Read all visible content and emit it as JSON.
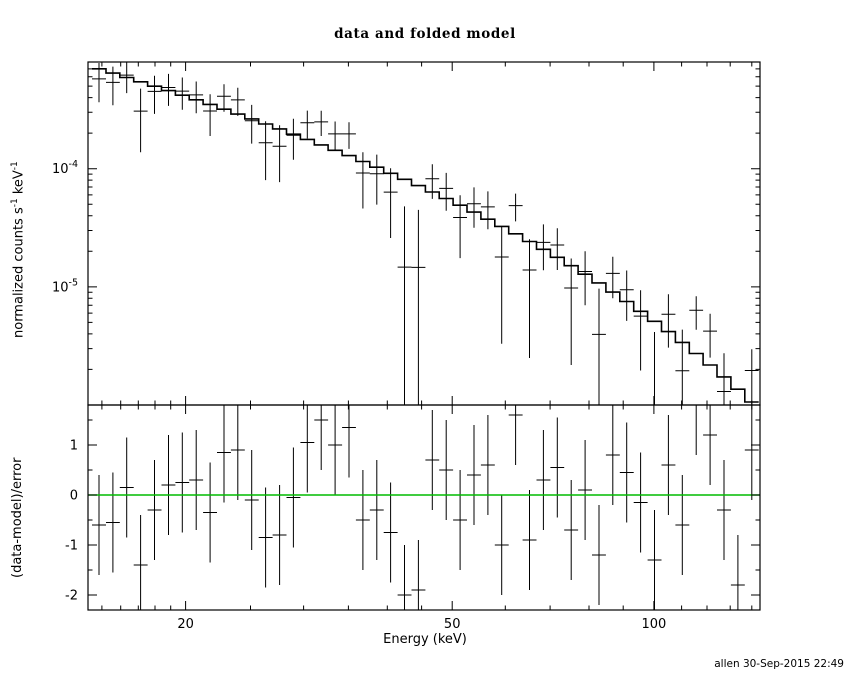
{
  "footer": {
    "text": "allen 30-Sep-2015 22:49"
  },
  "chart_data": {
    "type": "line",
    "title": "data and folded model",
    "xlabel": "Energy (keV)",
    "ylabel_top": {
      "p1": "normalized counts s",
      "s1": "-1",
      "p2": " keV",
      "s2": "-1"
    },
    "ylabel_bottom": "(data-model)/error",
    "x_scale": "log",
    "y_scale_top": "log",
    "y_scale_bottom": "linear",
    "xlim": [
      14.3,
      144
    ],
    "ylim_top": [
      1e-06,
      0.0008
    ],
    "ylim_bottom": [
      -2.3,
      1.8
    ],
    "grid": false,
    "legend": "none",
    "zero_line_color": "#00bb00",
    "x_ticks": [
      {
        "v": 20,
        "label": "20"
      },
      {
        "v": 50,
        "label": "50"
      },
      {
        "v": 100,
        "label": "100"
      }
    ],
    "x_minor_ticks": [
      15,
      16,
      17,
      18,
      19,
      25,
      30,
      35,
      40,
      45,
      60,
      70,
      80,
      90,
      110,
      120,
      130,
      140
    ],
    "y_ticks_top": [
      {
        "v": 0.0001,
        "mantissa": "10",
        "exp": "-4"
      },
      {
        "v": 1e-05,
        "mantissa": "10",
        "exp": "-5"
      }
    ],
    "y_ticks_bottom": [
      {
        "v": -2,
        "label": "-2"
      },
      {
        "v": -1,
        "label": "-1"
      },
      {
        "v": 0,
        "label": "0"
      },
      {
        "v": 1,
        "label": "1"
      }
    ],
    "series": [
      {
        "name": "data",
        "type": "errorbar",
        "bin_edges": [
          14.5,
          15.21,
          15.95,
          16.73,
          17.55,
          18.41,
          19.31,
          20.25,
          21.24,
          22.28,
          23.37,
          24.51,
          25.71,
          26.97,
          28.29,
          29.67,
          31.12,
          32.64,
          34.24,
          35.91,
          37.67,
          39.51,
          41.44,
          43.47,
          45.59,
          47.82,
          50.16,
          52.61,
          55.18,
          57.88,
          60.71,
          63.68,
          66.79,
          70.06,
          73.48,
          77.07,
          80.84,
          84.79,
          88.94,
          93.29,
          97.85,
          102.64,
          107.66,
          112.92,
          118.44,
          124.23,
          130.31,
          136.68,
          143.37
        ],
        "y": [
          0.000575,
          0.000538,
          0.00062,
          0.000307,
          0.000451,
          0.000487,
          0.000454,
          0.000421,
          0.000308,
          0.000411,
          0.000382,
          0.000255,
          0.000166,
          0.000155,
          0.000192,
          0.000245,
          0.000249,
          0.000197,
          0.000197,
          9.2e-05,
          9.07e-05,
          6.34e-05,
          1.47e-05,
          1.46e-05,
          8.22e-05,
          6.81e-05,
          3.86e-05,
          5.05e-05,
          4.75e-05,
          1.79e-05,
          4.87e-05,
          1.39e-05,
          2.38e-05,
          2.26e-05,
          9.78e-06,
          1.35e-05,
          3.96e-06,
          1.3e-05,
          9.45e-06,
          5.66e-06,
          9.5e-07,
          5.86e-06,
          1.95e-06,
          6.33e-06,
          4.22e-06,
          1.3e-06,
          -8e-07,
          1.96e-06
        ],
        "yerr": [
          0.00021,
          0.000193,
          0.000184,
          0.000169,
          0.00016,
          0.000147,
          0.000138,
          0.000126,
          0.000119,
          0.000108,
          0.000102,
          9.2e-05,
          8.6e-05,
          7.8e-05,
          7.3e-05,
          6.5e-05,
          6e-05,
          5.4e-05,
          5e-05,
          4.6e-05,
          4.1e-05,
          3.75e-05,
          3.33e-05,
          3.02e-05,
          2.67e-05,
          2.41e-05,
          2.11e-05,
          1.89e-05,
          1.68e-05,
          1.46e-05,
          1.29e-05,
          1.14e-05,
          1e-05,
          8.7e-06,
          7.6e-06,
          6.5e-06,
          5.7e-06,
          5e-06,
          4.3e-06,
          3.7e-06,
          3.2e-06,
          2.8e-06,
          2.4e-06,
          2e-06,
          1.7e-06,
          1.44e-06,
          1.2e-06,
          1e-06
        ]
      },
      {
        "name": "folded model",
        "type": "step",
        "uses_bins_of": "data",
        "y": [
          0.000701,
          0.000644,
          0.000592,
          0.000544,
          0.000499,
          0.000458,
          0.000419,
          0.000383,
          0.00035,
          0.000319,
          0.00029,
          0.000264,
          0.000239,
          0.000217,
          0.000196,
          0.000177,
          0.000159,
          0.000143,
          0.000129,
          0.000115,
          0.000103,
          9.15e-05,
          8.13e-05,
          7.2e-05,
          6.35e-05,
          5.6e-05,
          4.91e-05,
          4.29e-05,
          3.74e-05,
          3.25e-05,
          2.81e-05,
          2.42e-05,
          2.08e-05,
          1.78e-05,
          1.51e-05,
          1.28e-05,
          1.08e-05,
          9.02e-06,
          7.51e-06,
          6.21e-06,
          5.11e-06,
          4.18e-06,
          3.39e-06,
          2.73e-06,
          2.18e-06,
          1.73e-06,
          1.36e-06,
          1.06e-06
        ]
      },
      {
        "name": "residuals",
        "type": "errorbar",
        "uses_bins_of": "data",
        "y": [
          -0.6,
          -0.55,
          0.15,
          -1.4,
          -0.3,
          0.2,
          0.25,
          0.3,
          -0.35,
          0.85,
          0.9,
          -0.1,
          -0.85,
          -0.8,
          -0.05,
          1.05,
          1.5,
          1.0,
          1.35,
          -0.5,
          -0.3,
          -0.75,
          -2.0,
          -1.9,
          0.7,
          0.5,
          -0.5,
          0.4,
          0.6,
          -1.0,
          1.6,
          -0.9,
          0.3,
          0.55,
          -0.7,
          0.1,
          -1.2,
          0.8,
          0.45,
          -0.15,
          -1.3,
          0.6,
          -0.6,
          1.8,
          1.2,
          -0.3,
          -1.8,
          0.9
        ],
        "yerr": 1
      }
    ]
  }
}
